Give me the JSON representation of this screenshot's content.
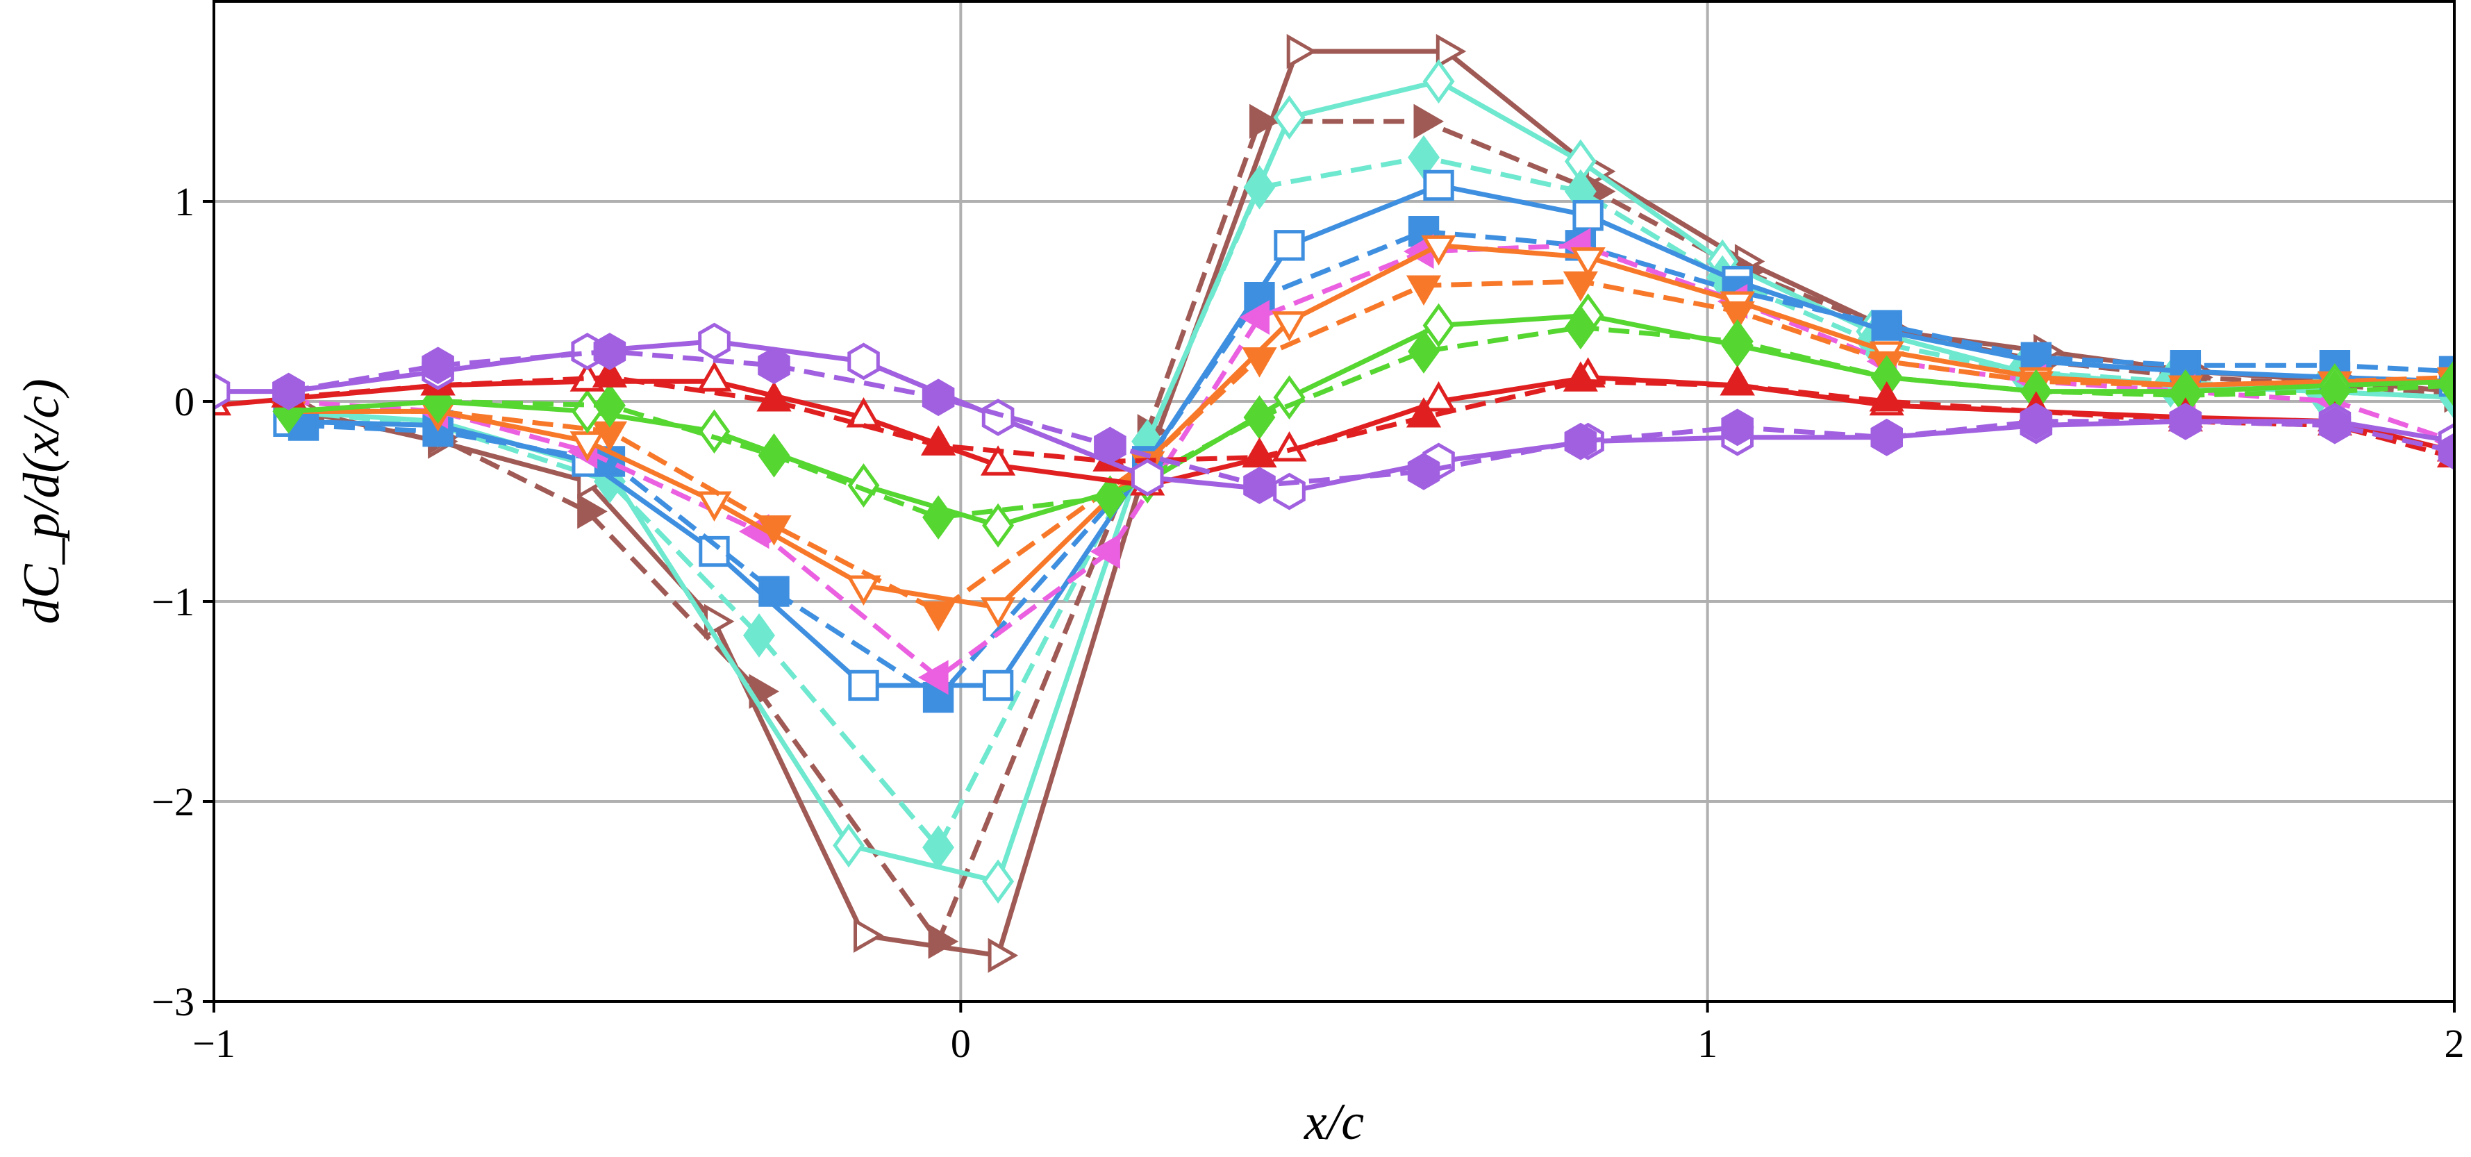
{
  "chart_data": {
    "type": "line",
    "title": "",
    "xlabel": "x/c",
    "ylabel": "dC_p/d(x/c)",
    "xlim": [
      -1,
      2
    ],
    "ylim": [
      -3,
      2
    ],
    "xticks": [
      -1,
      0,
      1,
      2
    ],
    "yticks": [
      -3,
      -2,
      -1,
      0,
      1
    ],
    "xtick_labels": [
      "−1",
      "0",
      "1",
      "2"
    ],
    "ytick_labels": [
      "−3",
      "−2",
      "−1",
      "0",
      "1"
    ],
    "grid": true,
    "series": [
      {
        "color": "#a05a55",
        "dash": "solid",
        "marker": "triangle-right",
        "filled": false,
        "x": [
          -0.88,
          -0.7,
          -0.5,
          -0.33,
          -0.13,
          0.05,
          0.25,
          0.45,
          0.65,
          0.85,
          1.05,
          1.25,
          1.45,
          1.65,
          1.85,
          2.0
        ],
        "y": [
          -0.05,
          -0.2,
          -0.4,
          -1.1,
          -2.67,
          -2.77,
          -0.3,
          1.75,
          1.75,
          1.15,
          0.7,
          0.35,
          0.25,
          0.15,
          0.1,
          0.05
        ]
      },
      {
        "color": "#a05a55",
        "dash": "dashed",
        "marker": "triangle-right",
        "filled": true,
        "x": [
          -0.88,
          -0.7,
          -0.5,
          -0.27,
          -0.03,
          0.25,
          0.4,
          0.62,
          0.85,
          1.05,
          1.25,
          1.45,
          1.65,
          1.85,
          2.0
        ],
        "y": [
          -0.08,
          -0.18,
          -0.55,
          -1.45,
          -2.7,
          -0.15,
          1.4,
          1.4,
          1.05,
          0.65,
          0.35,
          0.2,
          0.12,
          0.08,
          0.03
        ]
      },
      {
        "color": "#6ee8cf",
        "dash": "solid",
        "marker": "diamond",
        "filled": false,
        "x": [
          -0.9,
          -0.7,
          -0.47,
          -0.15,
          0.05,
          0.25,
          0.44,
          0.64,
          0.83,
          1.02,
          1.22,
          1.42,
          1.62,
          1.82,
          2.0
        ],
        "y": [
          -0.05,
          -0.1,
          -0.35,
          -2.22,
          -2.4,
          -0.2,
          1.42,
          1.6,
          1.2,
          0.7,
          0.35,
          0.15,
          0.08,
          0.05,
          0.02
        ]
      },
      {
        "color": "#6ee8cf",
        "dash": "dashed",
        "marker": "diamond",
        "filled": true,
        "x": [
          -0.9,
          -0.7,
          -0.47,
          -0.27,
          -0.03,
          0.25,
          0.4,
          0.62,
          0.83,
          1.02,
          1.22,
          1.42,
          1.62,
          1.82,
          2.0
        ],
        "y": [
          -0.05,
          -0.12,
          -0.4,
          -1.17,
          -2.23,
          -0.2,
          1.07,
          1.22,
          1.05,
          0.62,
          0.3,
          0.15,
          0.1,
          0.05,
          0.02
        ]
      },
      {
        "color": "#3f8fe0",
        "dash": "solid",
        "marker": "square",
        "filled": false,
        "x": [
          -0.9,
          -0.7,
          -0.5,
          -0.33,
          -0.13,
          0.05,
          0.25,
          0.44,
          0.64,
          0.84,
          1.04,
          1.24,
          1.44,
          1.64,
          1.84,
          2.0
        ],
        "y": [
          -0.1,
          -0.12,
          -0.3,
          -0.75,
          -1.42,
          -1.42,
          -0.3,
          0.78,
          1.08,
          0.93,
          0.6,
          0.35,
          0.2,
          0.15,
          0.12,
          0.1
        ]
      },
      {
        "color": "#3f8fe0",
        "dash": "dashed",
        "marker": "square",
        "filled": true,
        "x": [
          -0.88,
          -0.7,
          -0.47,
          -0.25,
          -0.03,
          0.25,
          0.4,
          0.62,
          0.83,
          1.04,
          1.24,
          1.44,
          1.64,
          1.84,
          2.0
        ],
        "y": [
          -0.12,
          -0.15,
          -0.3,
          -0.95,
          -1.48,
          -0.3,
          0.52,
          0.85,
          0.78,
          0.55,
          0.38,
          0.22,
          0.18,
          0.18,
          0.15
        ]
      },
      {
        "color": "#ea60e0",
        "dash": "dashed",
        "marker": "triangle-left",
        "filled": true,
        "x": [
          -0.9,
          -0.7,
          -0.5,
          -0.27,
          -0.03,
          0.2,
          0.4,
          0.62,
          0.83,
          1.04,
          1.24,
          1.44,
          1.64,
          1.84,
          2.0
        ],
        "y": [
          0.0,
          -0.05,
          -0.25,
          -0.65,
          -1.38,
          -0.75,
          0.42,
          0.75,
          0.78,
          0.5,
          0.2,
          0.1,
          0.05,
          0.0,
          -0.2
        ]
      },
      {
        "color": "#f8782a",
        "dash": "solid",
        "marker": "triangle-down",
        "filled": false,
        "x": [
          -0.9,
          -0.7,
          -0.5,
          -0.33,
          -0.13,
          0.05,
          0.25,
          0.44,
          0.64,
          0.84,
          1.04,
          1.24,
          1.44,
          1.64,
          1.84,
          2.0
        ],
        "y": [
          -0.05,
          -0.05,
          -0.2,
          -0.5,
          -0.92,
          -1.03,
          -0.3,
          0.4,
          0.78,
          0.72,
          0.5,
          0.25,
          0.12,
          0.08,
          0.1,
          0.1
        ]
      },
      {
        "color": "#f8782a",
        "dash": "dashed",
        "marker": "triangle-down",
        "filled": true,
        "x": [
          -0.9,
          -0.7,
          -0.47,
          -0.25,
          -0.03,
          0.25,
          0.4,
          0.62,
          0.83,
          1.04,
          1.24,
          1.44,
          1.64,
          1.84,
          2.0
        ],
        "y": [
          -0.05,
          -0.05,
          -0.15,
          -0.62,
          -1.05,
          -0.3,
          0.22,
          0.58,
          0.6,
          0.45,
          0.2,
          0.1,
          0.08,
          0.1,
          0.12
        ]
      },
      {
        "color": "#55d630",
        "dash": "solid",
        "marker": "diamond",
        "filled": false,
        "x": [
          -0.9,
          -0.7,
          -0.5,
          -0.33,
          -0.13,
          0.05,
          0.25,
          0.44,
          0.64,
          0.84,
          1.04,
          1.24,
          1.44,
          1.64,
          1.84,
          2.0
        ],
        "y": [
          -0.05,
          0.0,
          -0.05,
          -0.15,
          -0.42,
          -0.62,
          -0.4,
          0.02,
          0.38,
          0.43,
          0.28,
          0.12,
          0.05,
          0.05,
          0.08,
          0.1
        ]
      },
      {
        "color": "#55d630",
        "dash": "dashed",
        "marker": "diamond",
        "filled": true,
        "x": [
          -0.9,
          -0.7,
          -0.47,
          -0.25,
          -0.03,
          0.2,
          0.4,
          0.62,
          0.83,
          1.04,
          1.24,
          1.44,
          1.64,
          1.84,
          2.0
        ],
        "y": [
          -0.05,
          0.0,
          -0.02,
          -0.27,
          -0.58,
          -0.48,
          -0.08,
          0.25,
          0.37,
          0.3,
          0.12,
          0.05,
          0.03,
          0.05,
          0.08
        ]
      },
      {
        "color": "#e02020",
        "dash": "solid",
        "marker": "triangle-up",
        "filled": false,
        "x": [
          -1.0,
          -0.7,
          -0.5,
          -0.33,
          -0.13,
          0.05,
          0.25,
          0.44,
          0.64,
          0.84,
          1.04,
          1.24,
          1.44,
          1.64,
          1.84,
          2.0
        ],
        "y": [
          -0.02,
          0.08,
          0.1,
          0.1,
          -0.08,
          -0.32,
          -0.42,
          -0.25,
          0.0,
          0.12,
          0.08,
          -0.02,
          -0.05,
          -0.08,
          -0.1,
          -0.25
        ]
      },
      {
        "color": "#e02020",
        "dash": "dashed",
        "marker": "triangle-up",
        "filled": true,
        "x": [
          -0.9,
          -0.7,
          -0.47,
          -0.25,
          -0.03,
          0.2,
          0.4,
          0.62,
          0.83,
          1.04,
          1.24,
          1.44,
          1.64,
          1.84,
          2.0
        ],
        "y": [
          0.02,
          0.08,
          0.12,
          0.0,
          -0.22,
          -0.3,
          -0.28,
          -0.08,
          0.1,
          0.08,
          0.0,
          -0.05,
          -0.1,
          -0.12,
          -0.28
        ]
      },
      {
        "color": "#a060e0",
        "dash": "solid",
        "marker": "hexagon",
        "filled": false,
        "x": [
          -1.0,
          -0.9,
          -0.7,
          -0.5,
          -0.33,
          -0.13,
          0.05,
          0.25,
          0.44,
          0.64,
          0.84,
          1.04,
          1.24,
          1.44,
          1.64,
          1.84,
          2.0
        ],
        "y": [
          0.05,
          0.05,
          0.15,
          0.25,
          0.3,
          0.2,
          -0.08,
          -0.38,
          -0.45,
          -0.3,
          -0.2,
          -0.18,
          -0.18,
          -0.12,
          -0.1,
          -0.1,
          -0.2
        ]
      },
      {
        "color": "#a060e0",
        "dash": "dashed",
        "marker": "hexagon",
        "filled": true,
        "x": [
          -0.9,
          -0.7,
          -0.47,
          -0.25,
          -0.03,
          0.2,
          0.4,
          0.62,
          0.83,
          1.04,
          1.24,
          1.44,
          1.64,
          1.84,
          2.0
        ],
        "y": [
          0.05,
          0.18,
          0.25,
          0.18,
          0.02,
          -0.22,
          -0.42,
          -0.35,
          -0.2,
          -0.13,
          -0.18,
          -0.1,
          -0.1,
          -0.12,
          -0.25
        ]
      }
    ]
  }
}
